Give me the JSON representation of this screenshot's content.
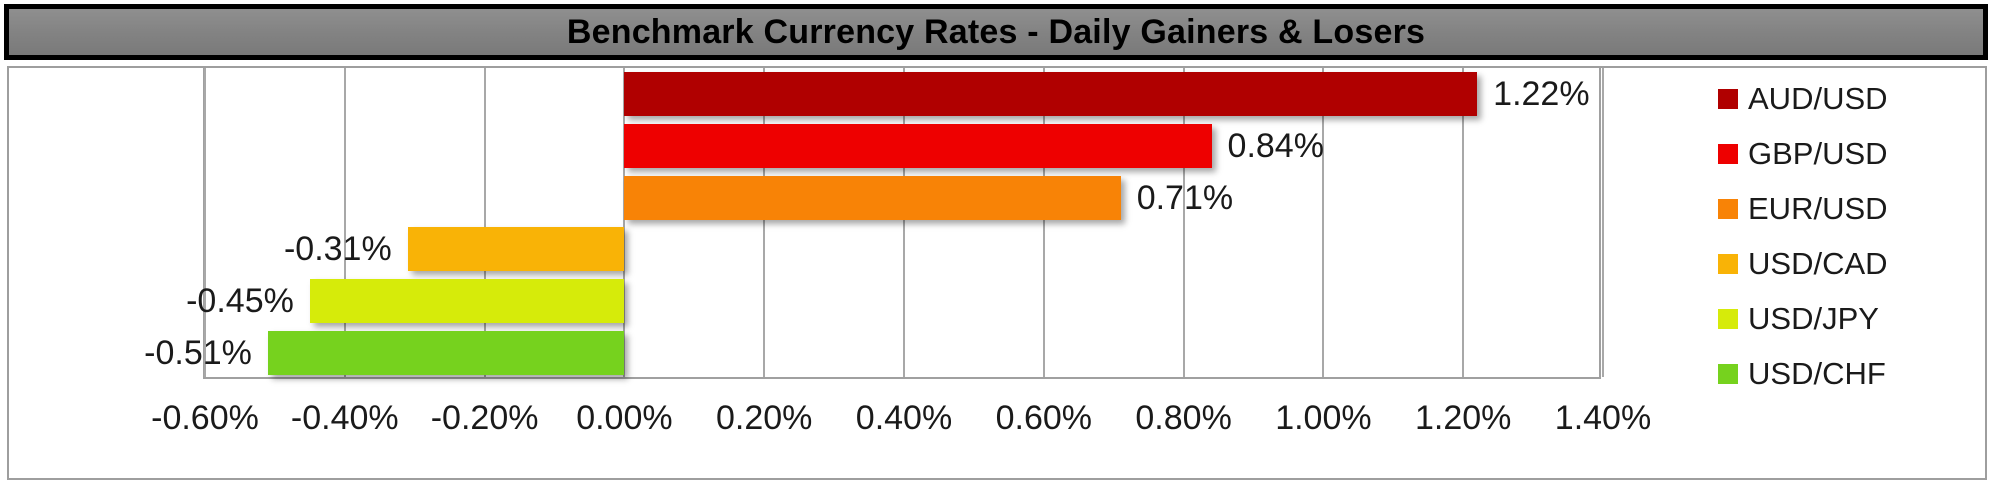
{
  "title": "Benchmark Currency Rates - Daily Gainers & Losers",
  "colors": {
    "title_bg": "#828282",
    "title_border": "#000000",
    "container_border": "#9e9e9e",
    "plot_border": "#a0a0a0",
    "gridline": "#a8a8a8",
    "label_text": "#1a1a1a",
    "background": "#ffffff"
  },
  "chart_data": {
    "type": "bar",
    "orientation": "horizontal",
    "title": "Benchmark Currency Rates - Daily Gainers & Losers",
    "categories": [
      "AUD/USD",
      "GBP/USD",
      "EUR/USD",
      "USD/CAD",
      "USD/JPY",
      "USD/CHF"
    ],
    "values": [
      1.22,
      0.84,
      0.71,
      -0.31,
      -0.45,
      -0.51
    ],
    "data_labels": [
      "1.22%",
      "0.84%",
      "0.71%",
      "-0.31%",
      "-0.45%",
      "-0.51%"
    ],
    "bar_colors": [
      "#b00000",
      "#ee0000",
      "#f88306",
      "#f9b306",
      "#d6eb0a",
      "#76d21e"
    ],
    "xlim": [
      -0.6,
      1.4
    ],
    "x_ticks": [
      {
        "value": -0.6,
        "label": "-0.60%"
      },
      {
        "value": -0.4,
        "label": "-0.40%"
      },
      {
        "value": -0.2,
        "label": "-0.20%"
      },
      {
        "value": 0.0,
        "label": "0.00%"
      },
      {
        "value": 0.2,
        "label": "0.20%"
      },
      {
        "value": 0.4,
        "label": "0.40%"
      },
      {
        "value": 0.6,
        "label": "0.60%"
      },
      {
        "value": 0.8,
        "label": "0.80%"
      },
      {
        "value": 1.0,
        "label": "1.00%"
      },
      {
        "value": 1.2,
        "label": "1.20%"
      },
      {
        "value": 1.4,
        "label": "1.40%"
      }
    ],
    "grid": true,
    "legend_position": "right",
    "legend": [
      {
        "label": "AUD/USD",
        "color": "#b00000"
      },
      {
        "label": "GBP/USD",
        "color": "#ee0000"
      },
      {
        "label": "EUR/USD",
        "color": "#f88306"
      },
      {
        "label": "USD/CAD",
        "color": "#f9b306"
      },
      {
        "label": "USD/JPY",
        "color": "#d6eb0a"
      },
      {
        "label": "USD/CHF",
        "color": "#76d21e"
      }
    ]
  }
}
